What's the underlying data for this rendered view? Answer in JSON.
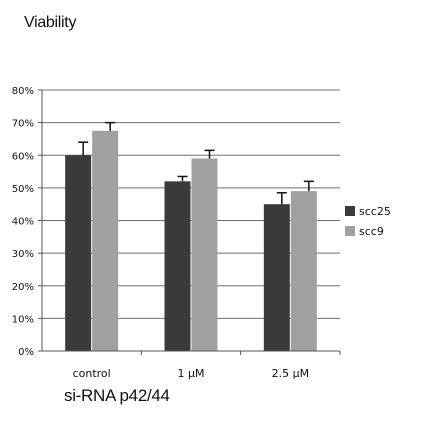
{
  "chart_data": {
    "type": "bar",
    "title": "Viability",
    "xlabel": "si-RNA p42/44",
    "ylabel": "",
    "categories": [
      "control",
      "1 µM",
      "2.5 µM"
    ],
    "ylim": [
      0,
      80
    ],
    "yticks": [
      "0%",
      "10%",
      "20%",
      "30%",
      "40%",
      "50%",
      "60%",
      "70%",
      "80%"
    ],
    "tick_values": [
      0,
      10,
      20,
      30,
      40,
      50,
      60,
      70,
      80
    ],
    "grid": true,
    "legend_position": "right",
    "series": [
      {
        "name": "scc25",
        "color": "#3a3a3a",
        "values": [
          60,
          52,
          45
        ],
        "errors": [
          4,
          1.5,
          3.5
        ]
      },
      {
        "name": "scc9",
        "color": "#a0a0a0",
        "values": [
          67.5,
          59,
          49
        ],
        "errors": [
          2.5,
          2.5,
          3
        ]
      }
    ]
  }
}
